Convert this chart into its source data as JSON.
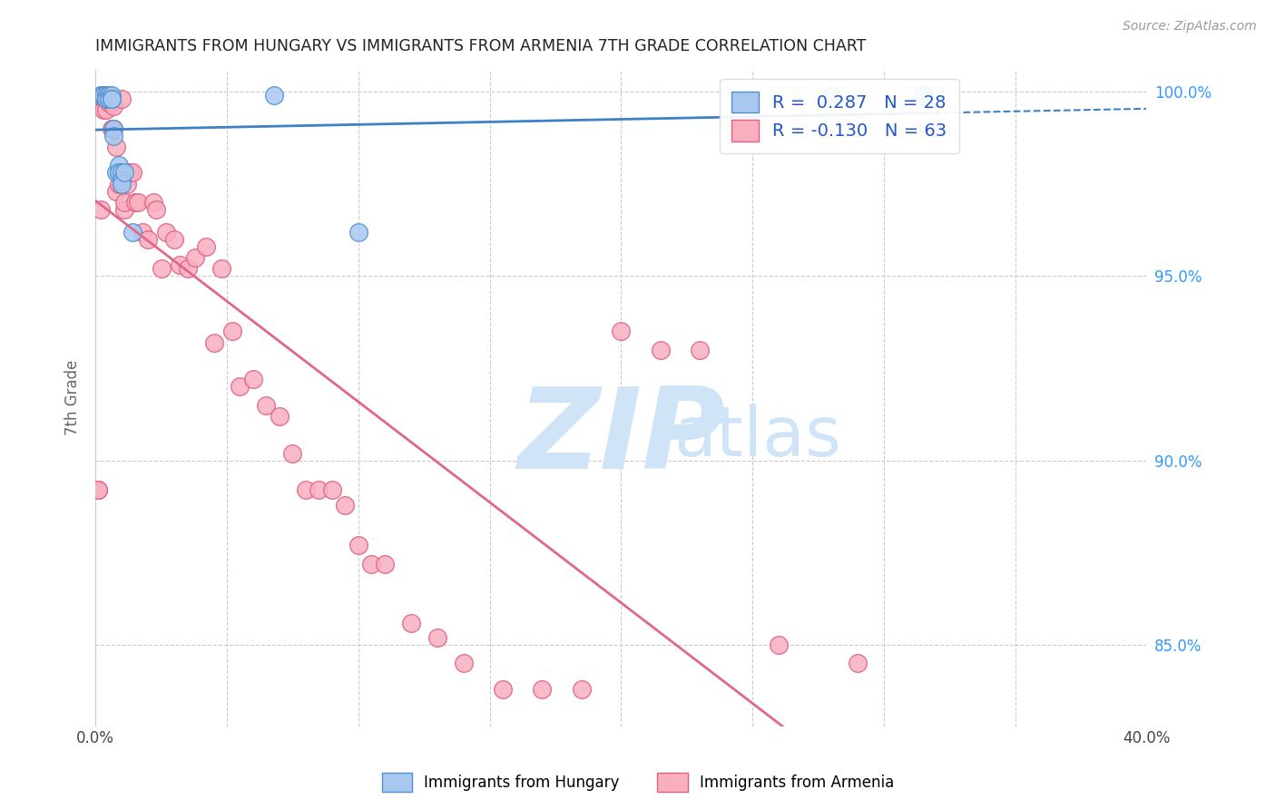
{
  "title": "IMMIGRANTS FROM HUNGARY VS IMMIGRANTS FROM ARMENIA 7TH GRADE CORRELATION CHART",
  "source": "Source: ZipAtlas.com",
  "ylabel": "7th Grade",
  "xlim": [
    0.0,
    0.4
  ],
  "ylim": [
    0.828,
    1.006
  ],
  "xticks": [
    0.0,
    0.05,
    0.1,
    0.15,
    0.2,
    0.25,
    0.3,
    0.35,
    0.4
  ],
  "yticks": [
    0.85,
    0.9,
    0.95,
    1.0
  ],
  "yticklabels": [
    "85.0%",
    "90.0%",
    "95.0%",
    "100.0%"
  ],
  "hungary_R": 0.287,
  "hungary_N": 28,
  "armenia_R": -0.13,
  "armenia_N": 63,
  "hungary_color": "#A8C8F0",
  "armenia_color": "#F8B0C0",
  "hungary_edge_color": "#5090D0",
  "armenia_edge_color": "#E06080",
  "hungary_line_color": "#4080C8",
  "armenia_line_color": "#E06888",
  "watermark_zip": "ZIP",
  "watermark_atlas": "atlas",
  "watermark_color": "#D0E4F8",
  "legend_label_hungary": "Immigrants from Hungary",
  "legend_label_armenia": "Immigrants from Armenia",
  "hungary_x": [
    0.002,
    0.002,
    0.003,
    0.003,
    0.004,
    0.004,
    0.004,
    0.005,
    0.005,
    0.005,
    0.005,
    0.006,
    0.006,
    0.006,
    0.007,
    0.007,
    0.008,
    0.009,
    0.009,
    0.01,
    0.01,
    0.01,
    0.011,
    0.014,
    0.068,
    0.1,
    0.28,
    0.315
  ],
  "hungary_y": [
    0.999,
    0.999,
    0.999,
    0.999,
    0.999,
    0.999,
    0.998,
    0.999,
    0.999,
    0.998,
    0.998,
    0.999,
    0.998,
    0.998,
    0.99,
    0.988,
    0.978,
    0.98,
    0.978,
    0.978,
    0.976,
    0.975,
    0.978,
    0.962,
    0.999,
    0.962,
    0.999,
    0.999
  ],
  "armenia_x": [
    0.001,
    0.001,
    0.002,
    0.002,
    0.003,
    0.003,
    0.004,
    0.004,
    0.005,
    0.005,
    0.006,
    0.006,
    0.007,
    0.007,
    0.008,
    0.008,
    0.009,
    0.01,
    0.01,
    0.011,
    0.011,
    0.012,
    0.013,
    0.014,
    0.015,
    0.016,
    0.018,
    0.02,
    0.022,
    0.023,
    0.025,
    0.027,
    0.03,
    0.032,
    0.035,
    0.038,
    0.042,
    0.045,
    0.048,
    0.052,
    0.055,
    0.06,
    0.065,
    0.07,
    0.075,
    0.08,
    0.085,
    0.09,
    0.095,
    0.1,
    0.105,
    0.11,
    0.12,
    0.13,
    0.14,
    0.155,
    0.17,
    0.185,
    0.2,
    0.215,
    0.23,
    0.26,
    0.29
  ],
  "armenia_y": [
    0.892,
    0.892,
    0.997,
    0.968,
    0.998,
    0.995,
    0.998,
    0.995,
    0.998,
    0.997,
    0.997,
    0.99,
    0.996,
    0.99,
    0.985,
    0.973,
    0.975,
    0.998,
    0.975,
    0.968,
    0.97,
    0.975,
    0.978,
    0.978,
    0.97,
    0.97,
    0.962,
    0.96,
    0.97,
    0.968,
    0.952,
    0.962,
    0.96,
    0.953,
    0.952,
    0.955,
    0.958,
    0.932,
    0.952,
    0.935,
    0.92,
    0.922,
    0.915,
    0.912,
    0.902,
    0.892,
    0.892,
    0.892,
    0.888,
    0.877,
    0.872,
    0.872,
    0.856,
    0.852,
    0.845,
    0.838,
    0.838,
    0.838,
    0.935,
    0.93,
    0.93,
    0.85,
    0.845
  ]
}
